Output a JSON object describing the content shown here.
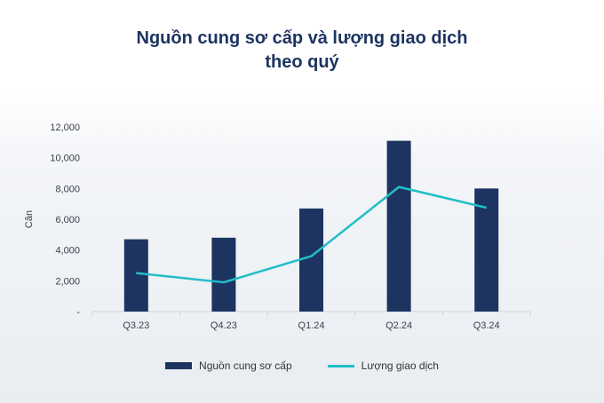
{
  "chart_data": {
    "type": "bar+line",
    "title": "Nguồn cung sơ cấp và lượng giao dịch theo quý",
    "title_lines": [
      "Nguồn cung sơ cấp và lượng giao dịch",
      "theo quý"
    ],
    "ylabel": "Căn",
    "xlabel": "",
    "ylim": [
      0,
      12000
    ],
    "yticks": [
      0,
      2000,
      4000,
      6000,
      8000,
      10000,
      12000
    ],
    "ytick_labels": [
      "-",
      "2,000",
      "4,000",
      "6,000",
      "8,000",
      "10,000",
      "12,000"
    ],
    "categories": [
      "Q3.23",
      "Q4.23",
      "Q1.24",
      "Q2.24",
      "Q3.24"
    ],
    "grid": false,
    "legend_position": "bottom",
    "series": [
      {
        "name": "Nguồn cung sơ cấp",
        "type": "bar",
        "color": "#1d3461",
        "values": [
          4700,
          4800,
          6700,
          11100,
          8000
        ]
      },
      {
        "name": "Lượng giao dịch",
        "type": "line",
        "color": "#1fbfc8",
        "values": [
          2500,
          1900,
          3600,
          8100,
          6750
        ]
      }
    ]
  }
}
